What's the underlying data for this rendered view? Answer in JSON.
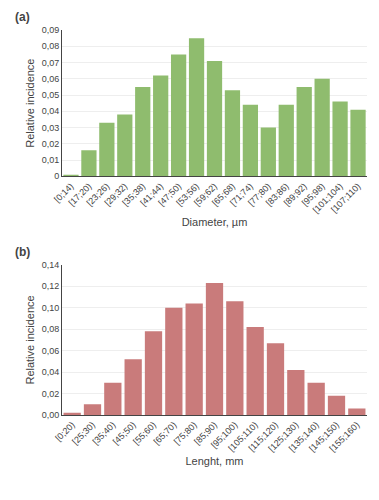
{
  "chart_data": [
    {
      "type": "bar",
      "title": "(a)",
      "categories": [
        "[0;14)",
        "[17;20)",
        "[23;26)",
        "[29;32)",
        "[35;38)",
        "[41;44)",
        "[47;50)",
        "[53;56)",
        "[59;62)",
        "[65;68)",
        "[71;74)",
        "[77;80)",
        "[83;86)",
        "[89;92)",
        "[95;98)",
        "[101;104)",
        "[107;110)"
      ],
      "values": [
        0.001,
        0.016,
        0.033,
        0.038,
        0.055,
        0.062,
        0.075,
        0.085,
        0.071,
        0.053,
        0.044,
        0.03,
        0.044,
        0.055,
        0.06,
        0.046,
        0.041
      ],
      "color": "#8FBC6E",
      "x_label": "Diameter, µm",
      "y_label": "Relative incidence",
      "ylim": [
        0,
        0.09
      ],
      "yticks": [
        0,
        {
          "value": 0.01,
          "label": "0,01"
        },
        {
          "value": 0.02,
          "label": "0,02"
        },
        {
          "value": 0.03,
          "label": "0,03"
        },
        {
          "value": 0.04,
          "label": "0,04"
        },
        {
          "value": 0.05,
          "label": "0,05"
        },
        {
          "value": 0.06,
          "label": "0,06"
        },
        {
          "value": 0.07,
          "label": "0,07"
        },
        {
          "value": 0.08,
          "label": "0,08"
        },
        {
          "value": 0.09,
          "label": "0,09"
        }
      ],
      "grid": true
    },
    {
      "type": "bar",
      "title": "(b)",
      "categories": [
        "[0;20)",
        "[25;30)",
        "[35;40)",
        "[45;50)",
        "[55;60)",
        "[65;70)",
        "[75;80)",
        "[85;90)",
        "[95;100)",
        "[105;110)",
        "[115;120)",
        "[125;130)",
        "[135;140)",
        "[145;150)",
        "[155;160)"
      ],
      "values": [
        0.002,
        0.01,
        0.03,
        0.052,
        0.078,
        0.1,
        0.104,
        0.123,
        0.106,
        0.082,
        0.067,
        0.042,
        0.03,
        0.018,
        0.006
      ],
      "color": "#C97B7B",
      "x_label": "Lenght, mm",
      "y_label": "Relative incidence",
      "ylim": [
        0,
        0.14
      ],
      "yticks": [
        {
          "value": 0,
          "label": "0,00"
        },
        {
          "value": 0.02,
          "label": "0,02"
        },
        {
          "value": 0.04,
          "label": "0,04"
        },
        {
          "value": 0.06,
          "label": "0,06"
        },
        {
          "value": 0.08,
          "label": "0,08"
        },
        {
          "value": 0.1,
          "label": "0,10"
        },
        {
          "value": 0.12,
          "label": "0,12"
        },
        {
          "value": 0.14,
          "label": "0,14"
        }
      ],
      "grid": true
    }
  ]
}
